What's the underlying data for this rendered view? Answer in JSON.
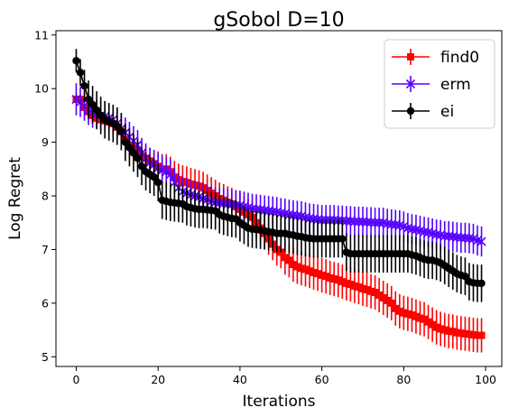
{
  "chart_data": {
    "type": "line",
    "title": "gSobol D=10",
    "xlabel": "Iterations",
    "ylabel": "Log Regret",
    "xlim": [
      -4.95,
      103.95
    ],
    "ylim": [
      4.82,
      11.08
    ],
    "xticks": [
      0,
      20,
      40,
      60,
      80,
      100
    ],
    "xtick_labels": [
      "0",
      "20",
      "40",
      "60",
      "80",
      "100"
    ],
    "yticks": [
      5,
      6,
      7,
      8,
      9,
      10,
      11
    ],
    "ytick_labels": [
      "5",
      "6",
      "7",
      "8",
      "9",
      "10",
      "11"
    ],
    "grid": false,
    "legend_position": "top-right",
    "x": [
      0,
      1,
      2,
      3,
      4,
      5,
      6,
      7,
      8,
      9,
      10,
      11,
      12,
      13,
      14,
      15,
      16,
      17,
      18,
      19,
      20,
      21,
      22,
      23,
      24,
      25,
      26,
      27,
      28,
      29,
      30,
      31,
      32,
      33,
      34,
      35,
      36,
      37,
      38,
      39,
      40,
      41,
      42,
      43,
      44,
      45,
      46,
      47,
      48,
      49,
      50,
      51,
      52,
      53,
      54,
      55,
      56,
      57,
      58,
      59,
      60,
      61,
      62,
      63,
      64,
      65,
      66,
      67,
      68,
      69,
      70,
      71,
      72,
      73,
      74,
      75,
      76,
      77,
      78,
      79,
      80,
      81,
      82,
      83,
      84,
      85,
      86,
      87,
      88,
      89,
      90,
      91,
      92,
      93,
      94,
      95,
      96,
      97,
      98,
      99
    ],
    "series": [
      {
        "name": "find0",
        "color": "#ff0000",
        "marker": "square",
        "values": [
          9.8,
          9.8,
          9.65,
          9.57,
          9.5,
          9.45,
          9.42,
          9.4,
          9.38,
          9.35,
          9.28,
          9.2,
          9.05,
          8.95,
          8.9,
          8.85,
          8.75,
          8.7,
          8.65,
          8.6,
          8.55,
          8.5,
          8.5,
          8.45,
          8.35,
          8.3,
          8.27,
          8.25,
          8.22,
          8.2,
          8.18,
          8.15,
          8.1,
          8.05,
          8.0,
          7.95,
          7.92,
          7.88,
          7.85,
          7.8,
          7.75,
          7.7,
          7.65,
          7.6,
          7.5,
          7.4,
          7.3,
          7.2,
          7.1,
          7.0,
          6.95,
          6.85,
          6.8,
          6.72,
          6.68,
          6.65,
          6.63,
          6.6,
          6.57,
          6.55,
          6.52,
          6.5,
          6.47,
          6.45,
          6.43,
          6.4,
          6.37,
          6.35,
          6.32,
          6.3,
          6.27,
          6.25,
          6.22,
          6.2,
          6.15,
          6.1,
          6.05,
          6.0,
          5.9,
          5.85,
          5.82,
          5.8,
          5.78,
          5.75,
          5.72,
          5.7,
          5.65,
          5.6,
          5.55,
          5.52,
          5.5,
          5.48,
          5.47,
          5.45,
          5.44,
          5.43,
          5.42,
          5.41,
          5.4,
          5.4
        ],
        "errors": [
          0.1,
          0.1,
          0.12,
          0.15,
          0.15,
          0.15,
          0.15,
          0.15,
          0.15,
          0.18,
          0.2,
          0.22,
          0.25,
          0.25,
          0.25,
          0.25,
          0.25,
          0.25,
          0.25,
          0.25,
          0.28,
          0.28,
          0.28,
          0.28,
          0.3,
          0.3,
          0.3,
          0.3,
          0.3,
          0.3,
          0.3,
          0.3,
          0.3,
          0.3,
          0.3,
          0.3,
          0.3,
          0.3,
          0.3,
          0.3,
          0.3,
          0.3,
          0.3,
          0.3,
          0.3,
          0.3,
          0.3,
          0.3,
          0.3,
          0.3,
          0.3,
          0.32,
          0.32,
          0.32,
          0.32,
          0.32,
          0.32,
          0.32,
          0.32,
          0.32,
          0.32,
          0.32,
          0.32,
          0.32,
          0.32,
          0.32,
          0.32,
          0.32,
          0.32,
          0.32,
          0.32,
          0.32,
          0.32,
          0.32,
          0.32,
          0.32,
          0.32,
          0.32,
          0.32,
          0.32,
          0.32,
          0.32,
          0.32,
          0.32,
          0.32,
          0.32,
          0.32,
          0.32,
          0.32,
          0.32,
          0.32,
          0.32,
          0.32,
          0.32,
          0.32,
          0.32,
          0.32,
          0.32,
          0.32,
          0.32
        ]
      },
      {
        "name": "erm",
        "color": "#5500ff",
        "marker": "x",
        "values": [
          9.8,
          9.75,
          9.68,
          9.6,
          9.55,
          9.52,
          9.5,
          9.48,
          9.45,
          9.42,
          9.35,
          9.25,
          9.18,
          9.1,
          9.02,
          8.95,
          8.8,
          8.7,
          8.62,
          8.58,
          8.52,
          8.48,
          8.45,
          8.4,
          8.25,
          8.15,
          8.08,
          8.05,
          8.02,
          8.0,
          7.98,
          7.95,
          7.93,
          7.9,
          7.88,
          7.87,
          7.86,
          7.85,
          7.84,
          7.83,
          7.82,
          7.8,
          7.78,
          7.76,
          7.75,
          7.74,
          7.73,
          7.72,
          7.71,
          7.7,
          7.68,
          7.67,
          7.65,
          7.64,
          7.63,
          7.62,
          7.6,
          7.58,
          7.57,
          7.56,
          7.55,
          7.55,
          7.55,
          7.55,
          7.54,
          7.54,
          7.53,
          7.53,
          7.52,
          7.52,
          7.52,
          7.51,
          7.51,
          7.5,
          7.5,
          7.5,
          7.48,
          7.47,
          7.46,
          7.45,
          7.43,
          7.4,
          7.38,
          7.37,
          7.35,
          7.33,
          7.32,
          7.3,
          7.28,
          7.27,
          7.25,
          7.25,
          7.24,
          7.23,
          7.22,
          7.22,
          7.21,
          7.2,
          7.17,
          7.15
        ],
        "errors": [
          0.3,
          0.28,
          0.28,
          0.28,
          0.28,
          0.28,
          0.28,
          0.28,
          0.28,
          0.28,
          0.28,
          0.28,
          0.28,
          0.28,
          0.28,
          0.28,
          0.28,
          0.28,
          0.28,
          0.28,
          0.28,
          0.28,
          0.28,
          0.28,
          0.28,
          0.28,
          0.28,
          0.28,
          0.28,
          0.28,
          0.28,
          0.28,
          0.28,
          0.28,
          0.28,
          0.28,
          0.28,
          0.28,
          0.28,
          0.28,
          0.28,
          0.28,
          0.28,
          0.28,
          0.28,
          0.28,
          0.28,
          0.28,
          0.28,
          0.28,
          0.28,
          0.28,
          0.28,
          0.28,
          0.28,
          0.28,
          0.28,
          0.28,
          0.28,
          0.28,
          0.28,
          0.28,
          0.28,
          0.28,
          0.28,
          0.28,
          0.28,
          0.28,
          0.28,
          0.28,
          0.28,
          0.28,
          0.28,
          0.28,
          0.28,
          0.28,
          0.28,
          0.28,
          0.28,
          0.28,
          0.28,
          0.28,
          0.28,
          0.28,
          0.28,
          0.28,
          0.28,
          0.28,
          0.28,
          0.28,
          0.28,
          0.28,
          0.28,
          0.28,
          0.28,
          0.28,
          0.28,
          0.28,
          0.28,
          0.28
        ]
      },
      {
        "name": "ei",
        "color": "#000000",
        "marker": "circle",
        "values": [
          10.52,
          10.3,
          10.05,
          9.8,
          9.7,
          9.6,
          9.5,
          9.42,
          9.38,
          9.35,
          9.3,
          9.2,
          9.0,
          8.9,
          8.8,
          8.7,
          8.55,
          8.45,
          8.4,
          8.35,
          8.25,
          7.92,
          7.9,
          7.88,
          7.87,
          7.86,
          7.85,
          7.8,
          7.78,
          7.76,
          7.75,
          7.75,
          7.74,
          7.73,
          7.72,
          7.65,
          7.62,
          7.6,
          7.58,
          7.57,
          7.5,
          7.45,
          7.4,
          7.38,
          7.37,
          7.36,
          7.35,
          7.33,
          7.32,
          7.3,
          7.3,
          7.3,
          7.28,
          7.27,
          7.25,
          7.24,
          7.22,
          7.21,
          7.2,
          7.2,
          7.2,
          7.2,
          7.2,
          7.2,
          7.2,
          7.2,
          6.95,
          6.92,
          6.92,
          6.92,
          6.92,
          6.92,
          6.92,
          6.92,
          6.92,
          6.92,
          6.92,
          6.92,
          6.92,
          6.92,
          6.92,
          6.92,
          6.9,
          6.88,
          6.85,
          6.82,
          6.8,
          6.8,
          6.78,
          6.75,
          6.7,
          6.65,
          6.6,
          6.55,
          6.52,
          6.5,
          6.4,
          6.38,
          6.37,
          6.37
        ],
        "errors": [
          0.22,
          0.25,
          0.3,
          0.35,
          0.35,
          0.35,
          0.35,
          0.35,
          0.35,
          0.35,
          0.35,
          0.35,
          0.35,
          0.35,
          0.35,
          0.35,
          0.35,
          0.35,
          0.35,
          0.35,
          0.35,
          0.35,
          0.35,
          0.35,
          0.35,
          0.35,
          0.35,
          0.35,
          0.35,
          0.35,
          0.35,
          0.35,
          0.35,
          0.35,
          0.35,
          0.35,
          0.35,
          0.35,
          0.35,
          0.35,
          0.35,
          0.35,
          0.35,
          0.35,
          0.35,
          0.35,
          0.35,
          0.35,
          0.35,
          0.35,
          0.35,
          0.35,
          0.35,
          0.35,
          0.35,
          0.35,
          0.35,
          0.35,
          0.35,
          0.35,
          0.35,
          0.35,
          0.35,
          0.35,
          0.35,
          0.35,
          0.35,
          0.35,
          0.35,
          0.35,
          0.35,
          0.35,
          0.35,
          0.35,
          0.35,
          0.35,
          0.35,
          0.35,
          0.35,
          0.35,
          0.35,
          0.35,
          0.35,
          0.35,
          0.35,
          0.35,
          0.35,
          0.35,
          0.35,
          0.35,
          0.35,
          0.35,
          0.35,
          0.35,
          0.35,
          0.35,
          0.35,
          0.35,
          0.35,
          0.35
        ]
      }
    ]
  }
}
